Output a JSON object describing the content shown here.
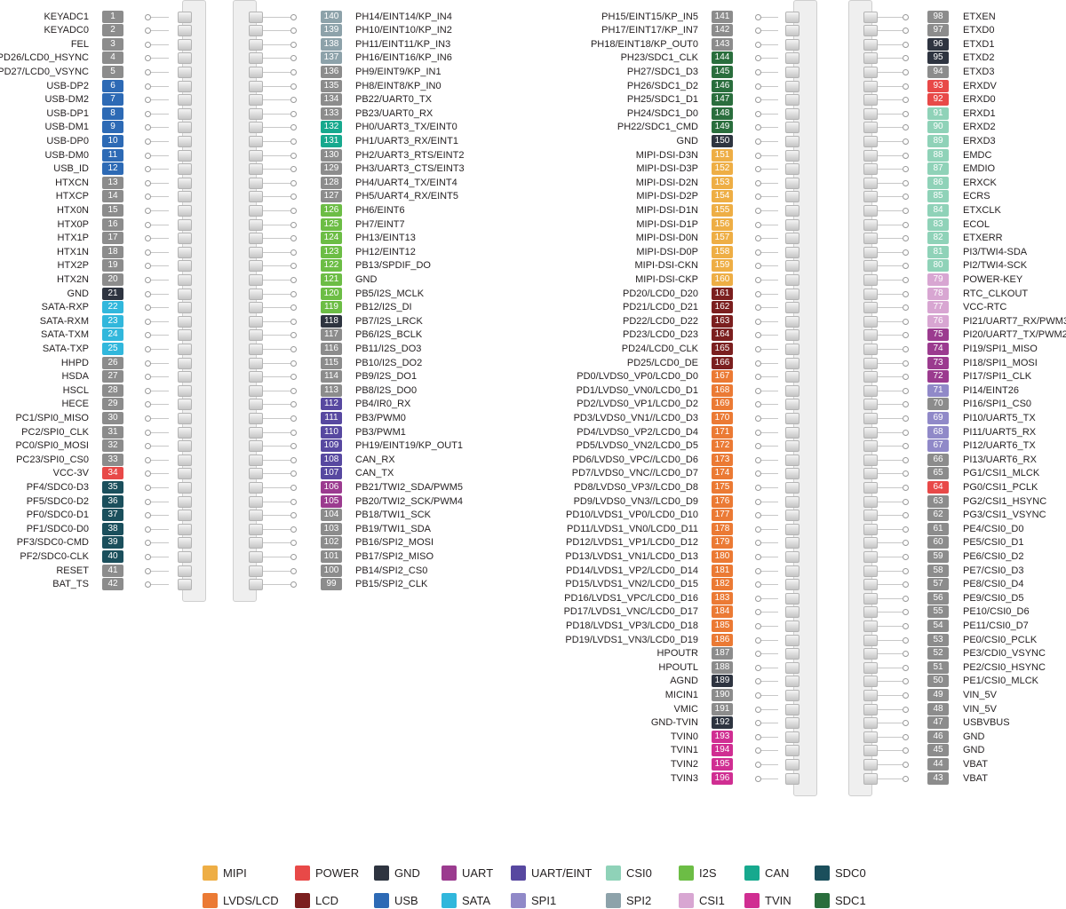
{
  "colors": {
    "MIPI": "#eeae45",
    "POWER": "#e84948",
    "GND": "#2e3440",
    "UART": "#9b3b8f",
    "UART/EINT": "#5748a0",
    "CSI0": "#8fd2b8",
    "I2S": "#6cbd45",
    "CAN": "#17a98e",
    "SDC0": "#1b4f5c",
    "LVDS/LCD": "#eb7a34",
    "LCD": "#7b1f1f",
    "USB": "#2d6ab5",
    "SATA": "#31b7dc",
    "SPI1": "#9089c8",
    "SPI2": "#8da2aa",
    "CSI1": "#d8a6d2",
    "TVIN": "#d02e92",
    "SDC1": "#2a6e3d",
    "none": "#8c8c8c"
  },
  "legend": [
    {
      "label": "MIPI",
      "group": "MIPI"
    },
    {
      "label": "POWER",
      "group": "POWER"
    },
    {
      "label": "GND",
      "group": "GND"
    },
    {
      "label": "UART",
      "group": "UART"
    },
    {
      "label": "UART/EINT",
      "group": "UART/EINT"
    },
    {
      "label": "CSI0",
      "group": "CSI0"
    },
    {
      "label": "I2S",
      "group": "I2S"
    },
    {
      "label": "CAN",
      "group": "CAN"
    },
    {
      "label": "SDC0",
      "group": "SDC0"
    },
    {
      "label": "LVDS/LCD",
      "group": "LVDS/LCD"
    },
    {
      "label": "LCD",
      "group": "LCD"
    },
    {
      "label": "USB",
      "group": "USB"
    },
    {
      "label": "SATA",
      "group": "SATA"
    },
    {
      "label": "SPI1",
      "group": "SPI1"
    },
    {
      "label": "SPI2",
      "group": "SPI2"
    },
    {
      "label": "CSI1",
      "group": "CSI1"
    },
    {
      "label": "TVIN",
      "group": "TVIN"
    },
    {
      "label": "SDC1",
      "group": "SDC1"
    }
  ],
  "connector1_left": [
    {
      "pin": "1",
      "name": "KEYADC1",
      "group": "none"
    },
    {
      "pin": "2",
      "name": "KEYADC0",
      "group": "none"
    },
    {
      "pin": "3",
      "name": "FEL",
      "group": "none"
    },
    {
      "pin": "4",
      "name": "PD26/LCD0_HSYNC",
      "group": "none"
    },
    {
      "pin": "5",
      "name": "PD27/LCD0_VSYNC",
      "group": "none"
    },
    {
      "pin": "6",
      "name": "USB-DP2",
      "group": "USB"
    },
    {
      "pin": "7",
      "name": "USB-DM2",
      "group": "USB"
    },
    {
      "pin": "8",
      "name": "USB-DP1",
      "group": "USB"
    },
    {
      "pin": "9",
      "name": "USB-DM1",
      "group": "USB"
    },
    {
      "pin": "10",
      "name": "USB-DP0",
      "group": "USB"
    },
    {
      "pin": "11",
      "name": "USB-DM0",
      "group": "USB"
    },
    {
      "pin": "12",
      "name": "USB_ID",
      "group": "USB"
    },
    {
      "pin": "13",
      "name": "HTXCN",
      "group": "none"
    },
    {
      "pin": "14",
      "name": "HTXCP",
      "group": "none"
    },
    {
      "pin": "15",
      "name": "HTX0N",
      "group": "none"
    },
    {
      "pin": "16",
      "name": "HTX0P",
      "group": "none"
    },
    {
      "pin": "17",
      "name": "HTX1P",
      "group": "none"
    },
    {
      "pin": "18",
      "name": "HTX1N",
      "group": "none"
    },
    {
      "pin": "19",
      "name": "HTX2P",
      "group": "none"
    },
    {
      "pin": "20",
      "name": "HTX2N",
      "group": "none"
    },
    {
      "pin": "21",
      "name": "GND",
      "group": "GND"
    },
    {
      "pin": "22",
      "name": "SATA-RXP",
      "group": "SATA"
    },
    {
      "pin": "23",
      "name": "SATA-RXM",
      "group": "SATA"
    },
    {
      "pin": "24",
      "name": "SATA-TXM",
      "group": "SATA"
    },
    {
      "pin": "25",
      "name": "SATA-TXP",
      "group": "SATA"
    },
    {
      "pin": "26",
      "name": "HHPD",
      "group": "none"
    },
    {
      "pin": "27",
      "name": "HSDA",
      "group": "none"
    },
    {
      "pin": "28",
      "name": "HSCL",
      "group": "none"
    },
    {
      "pin": "29",
      "name": "HECE",
      "group": "none"
    },
    {
      "pin": "30",
      "name": "PC1/SPI0_MISO",
      "group": "none"
    },
    {
      "pin": "31",
      "name": "PC2/SPI0_CLK",
      "group": "none"
    },
    {
      "pin": "32",
      "name": "PC0/SPI0_MOSI",
      "group": "none"
    },
    {
      "pin": "33",
      "name": "PC23/SPI0_CS0",
      "group": "none"
    },
    {
      "pin": "34",
      "name": "VCC-3V",
      "group": "POWER"
    },
    {
      "pin": "35",
      "name": "PF4/SDC0-D3",
      "group": "SDC0"
    },
    {
      "pin": "36",
      "name": "PF5/SDC0-D2",
      "group": "SDC0"
    },
    {
      "pin": "37",
      "name": "PF0/SDC0-D1",
      "group": "SDC0"
    },
    {
      "pin": "38",
      "name": "PF1/SDC0-D0",
      "group": "SDC0"
    },
    {
      "pin": "39",
      "name": "PF3/SDC0-CMD",
      "group": "SDC0"
    },
    {
      "pin": "40",
      "name": "PF2/SDC0-CLK",
      "group": "SDC0"
    },
    {
      "pin": "41",
      "name": "RESET",
      "group": "none"
    },
    {
      "pin": "42",
      "name": "BAT_TS",
      "group": "none"
    }
  ],
  "connector1_right": [
    {
      "pin": "140",
      "name": "PH14/EINT14/KP_IN4",
      "group": "SPI2"
    },
    {
      "pin": "139",
      "name": "PH10/EINT10/KP_IN2",
      "group": "SPI2"
    },
    {
      "pin": "138",
      "name": "PH11/EINT11/KP_IN3",
      "group": "SPI2"
    },
    {
      "pin": "137",
      "name": "PH16/EINT16/KP_IN6",
      "group": "SPI2"
    },
    {
      "pin": "136",
      "name": "PH9/EINT9/KP_IN1",
      "group": "none"
    },
    {
      "pin": "135",
      "name": "PH8/EINT8/KP_IN0",
      "group": "none"
    },
    {
      "pin": "134",
      "name": "PB22/UART0_TX",
      "group": "none"
    },
    {
      "pin": "133",
      "name": "PB23/UART0_RX",
      "group": "none"
    },
    {
      "pin": "132",
      "name": "PH0/UART3_TX/EINT0",
      "group": "CAN"
    },
    {
      "pin": "131",
      "name": "PH1/UART3_RX/EINT1",
      "group": "CAN"
    },
    {
      "pin": "130",
      "name": "PH2/UART3_RTS/EINT2",
      "group": "none"
    },
    {
      "pin": "129",
      "name": "PH3/UART3_CTS/EINT3",
      "group": "none"
    },
    {
      "pin": "128",
      "name": "PH4/UART4_TX/EINT4",
      "group": "none"
    },
    {
      "pin": "127",
      "name": "PH5/UART4_RX/EINT5",
      "group": "none"
    },
    {
      "pin": "126",
      "name": "PH6/EINT6",
      "group": "I2S"
    },
    {
      "pin": "125",
      "name": "PH7/EINT7",
      "group": "I2S"
    },
    {
      "pin": "124",
      "name": "PH13/EINT13",
      "group": "I2S"
    },
    {
      "pin": "123",
      "name": "PH12/EINT12",
      "group": "I2S"
    },
    {
      "pin": "122",
      "name": "PB13/SPDIF_DO",
      "group": "I2S"
    },
    {
      "pin": "121",
      "name": "GND",
      "group": "I2S"
    },
    {
      "pin": "120",
      "name": "PB5/I2S_MCLK",
      "group": "I2S"
    },
    {
      "pin": "119",
      "name": "PB12/I2S_DI",
      "group": "I2S"
    },
    {
      "pin": "118",
      "name": "PB7/I2S_LRCK",
      "group": "GND"
    },
    {
      "pin": "117",
      "name": "PB6/I2S_BCLK",
      "group": "none"
    },
    {
      "pin": "116",
      "name": "PB11/I2S_DO3",
      "group": "none"
    },
    {
      "pin": "115",
      "name": "PB10/I2S_DO2",
      "group": "none"
    },
    {
      "pin": "114",
      "name": "PB9/I2S_DO1",
      "group": "none"
    },
    {
      "pin": "113",
      "name": "PB8/I2S_DO0",
      "group": "none"
    },
    {
      "pin": "112",
      "name": "PB4/IR0_RX",
      "group": "UART/EINT"
    },
    {
      "pin": "111",
      "name": "PB3/PWM0",
      "group": "UART/EINT"
    },
    {
      "pin": "110",
      "name": "PB3/PWM1",
      "group": "UART/EINT"
    },
    {
      "pin": "109",
      "name": "PH19/EINT19/KP_OUT1",
      "group": "UART/EINT"
    },
    {
      "pin": "108",
      "name": "CAN_RX",
      "group": "UART/EINT"
    },
    {
      "pin": "107",
      "name": "CAN_TX",
      "group": "UART/EINT"
    },
    {
      "pin": "106",
      "name": "PB21/TWI2_SDA/PWM5",
      "group": "UART"
    },
    {
      "pin": "105",
      "name": "PB20/TWI2_SCK/PWM4",
      "group": "UART"
    },
    {
      "pin": "104",
      "name": "PB18/TWI1_SCK",
      "group": "none"
    },
    {
      "pin": "103",
      "name": "PB19/TWI1_SDA",
      "group": "none"
    },
    {
      "pin": "102",
      "name": "PB16/SPI2_MOSI",
      "group": "none"
    },
    {
      "pin": "101",
      "name": "PB17/SPI2_MISO",
      "group": "none"
    },
    {
      "pin": "100",
      "name": "PB14/SPI2_CS0",
      "group": "none"
    },
    {
      "pin": "99",
      "name": "PB15/SPI2_CLK",
      "group": "none"
    }
  ],
  "connector2_left": [
    {
      "pin": "141",
      "name": "PH15/EINT15/KP_IN5",
      "group": "none"
    },
    {
      "pin": "142",
      "name": "PH17/EINT17/KP_IN7",
      "group": "none"
    },
    {
      "pin": "143",
      "name": "PH18/EINT18/KP_OUT0",
      "group": "none"
    },
    {
      "pin": "144",
      "name": "PH23/SDC1_CLK",
      "group": "SDC1"
    },
    {
      "pin": "145",
      "name": "PH27/SDC1_D3",
      "group": "SDC1"
    },
    {
      "pin": "146",
      "name": "PH26/SDC1_D2",
      "group": "SDC1"
    },
    {
      "pin": "147",
      "name": "PH25/SDC1_D1",
      "group": "SDC1"
    },
    {
      "pin": "148",
      "name": "PH24/SDC1_D0",
      "group": "SDC1"
    },
    {
      "pin": "149",
      "name": "PH22/SDC1_CMD",
      "group": "SDC1"
    },
    {
      "pin": "150",
      "name": "GND",
      "group": "GND"
    },
    {
      "pin": "151",
      "name": "MIPI-DSI-D3N",
      "group": "MIPI"
    },
    {
      "pin": "152",
      "name": "MIPI-DSI-D3P",
      "group": "MIPI"
    },
    {
      "pin": "153",
      "name": "MIPI-DSI-D2N",
      "group": "MIPI"
    },
    {
      "pin": "154",
      "name": "MIPI-DSI-D2P",
      "group": "MIPI"
    },
    {
      "pin": "155",
      "name": "MIPI-DSI-D1N",
      "group": "MIPI"
    },
    {
      "pin": "156",
      "name": "MIPI-DSI-D1P",
      "group": "MIPI"
    },
    {
      "pin": "157",
      "name": "MIPI-DSI-D0N",
      "group": "MIPI"
    },
    {
      "pin": "158",
      "name": "MIPI-DSI-D0P",
      "group": "MIPI"
    },
    {
      "pin": "159",
      "name": "MIPI-DSI-CKN",
      "group": "MIPI"
    },
    {
      "pin": "160",
      "name": "MIPI-DSI-CKP",
      "group": "MIPI"
    },
    {
      "pin": "161",
      "name": "PD20/LCD0_D20",
      "group": "LCD"
    },
    {
      "pin": "162",
      "name": "PD21/LCD0_D21",
      "group": "LCD"
    },
    {
      "pin": "163",
      "name": "PD22/LCD0_D22",
      "group": "LCD"
    },
    {
      "pin": "164",
      "name": "PD23/LCD0_D23",
      "group": "LCD"
    },
    {
      "pin": "165",
      "name": "PD24/LCD0_CLK",
      "group": "LCD"
    },
    {
      "pin": "166",
      "name": "PD25/LCD0_DE",
      "group": "LCD"
    },
    {
      "pin": "167",
      "name": "PD0/LVDS0_VP0/LCD0_D0",
      "group": "LVDS/LCD"
    },
    {
      "pin": "168",
      "name": "PD1/LVDS0_VN0/LCD0_D1",
      "group": "LVDS/LCD"
    },
    {
      "pin": "169",
      "name": "PD2/LVDS0_VP1/LCD0_D2",
      "group": "LVDS/LCD"
    },
    {
      "pin": "170",
      "name": "PD3/LVDS0_VN1//LCD0_D3",
      "group": "LVDS/LCD"
    },
    {
      "pin": "171",
      "name": "PD4/LVDS0_VP2/LCD0_D4",
      "group": "LVDS/LCD"
    },
    {
      "pin": "172",
      "name": "PD5/LVDS0_VN2/LCD0_D5",
      "group": "LVDS/LCD"
    },
    {
      "pin": "173",
      "name": "PD6/LVDS0_VPC//LCD0_D6",
      "group": "LVDS/LCD"
    },
    {
      "pin": "174",
      "name": "PD7/LVDS0_VNC//LCD0_D7",
      "group": "LVDS/LCD"
    },
    {
      "pin": "175",
      "name": "PD8/LVDS0_VP3//LCD0_D8",
      "group": "LVDS/LCD"
    },
    {
      "pin": "176",
      "name": "PD9/LVDS0_VN3//LCD0_D9",
      "group": "LVDS/LCD"
    },
    {
      "pin": "177",
      "name": "PD10/LVDS1_VP0/LCD0_D10",
      "group": "LVDS/LCD"
    },
    {
      "pin": "178",
      "name": "PD11/LVDS1_VN0/LCD0_D11",
      "group": "LVDS/LCD"
    },
    {
      "pin": "179",
      "name": "PD12/LVDS1_VP1/LCD0_D12",
      "group": "LVDS/LCD"
    },
    {
      "pin": "180",
      "name": "PD13/LVDS1_VN1/LCD0_D13",
      "group": "LVDS/LCD"
    },
    {
      "pin": "181",
      "name": "PD14/LVDS1_VP2/LCD0_D14",
      "group": "LVDS/LCD"
    },
    {
      "pin": "182",
      "name": "PD15/LVDS1_VN2/LCD0_D15",
      "group": "LVDS/LCD"
    },
    {
      "pin": "183",
      "name": "PD16/LVDS1_VPC/LCD0_D16",
      "group": "LVDS/LCD"
    },
    {
      "pin": "184",
      "name": "PD17/LVDS1_VNC/LCD0_D17",
      "group": "LVDS/LCD"
    },
    {
      "pin": "185",
      "name": "PD18/LVDS1_VP3/LCD0_D18",
      "group": "LVDS/LCD"
    },
    {
      "pin": "186",
      "name": "PD19/LVDS1_VN3/LCD0_D19",
      "group": "LVDS/LCD"
    },
    {
      "pin": "187",
      "name": "HPOUTR",
      "group": "none"
    },
    {
      "pin": "188",
      "name": "HPOUTL",
      "group": "none"
    },
    {
      "pin": "189",
      "name": "AGND",
      "group": "GND"
    },
    {
      "pin": "190",
      "name": "MICIN1",
      "group": "none"
    },
    {
      "pin": "191",
      "name": "VMIC",
      "group": "none"
    },
    {
      "pin": "192",
      "name": "GND-TVIN",
      "group": "GND"
    },
    {
      "pin": "193",
      "name": "TVIN0",
      "group": "TVIN"
    },
    {
      "pin": "194",
      "name": "TVIN1",
      "group": "TVIN"
    },
    {
      "pin": "195",
      "name": "TVIN2",
      "group": "TVIN"
    },
    {
      "pin": "196",
      "name": "TVIN3",
      "group": "TVIN"
    }
  ],
  "connector2_right": [
    {
      "pin": "98",
      "name": "ETXEN",
      "group": "none"
    },
    {
      "pin": "97",
      "name": "ETXD0",
      "group": "none"
    },
    {
      "pin": "96",
      "name": "ETXD1",
      "group": "GND"
    },
    {
      "pin": "95",
      "name": "ETXD2",
      "group": "GND"
    },
    {
      "pin": "94",
      "name": "ETXD3",
      "group": "none"
    },
    {
      "pin": "93",
      "name": "ERXDV",
      "group": "POWER"
    },
    {
      "pin": "92",
      "name": "ERXD0",
      "group": "POWER"
    },
    {
      "pin": "91",
      "name": "ERXD1",
      "group": "CSI0"
    },
    {
      "pin": "90",
      "name": "ERXD2",
      "group": "CSI0"
    },
    {
      "pin": "89",
      "name": "ERXD3",
      "group": "CSI0"
    },
    {
      "pin": "88",
      "name": "EMDC",
      "group": "CSI0"
    },
    {
      "pin": "87",
      "name": "EMDIO",
      "group": "CSI0"
    },
    {
      "pin": "86",
      "name": "ERXCK",
      "group": "CSI0"
    },
    {
      "pin": "85",
      "name": "ECRS",
      "group": "CSI0"
    },
    {
      "pin": "84",
      "name": "ETXCLK",
      "group": "CSI0"
    },
    {
      "pin": "83",
      "name": "ECOL",
      "group": "CSI0"
    },
    {
      "pin": "82",
      "name": "ETXERR",
      "group": "CSI0"
    },
    {
      "pin": "81",
      "name": "PI3/TWI4-SDA",
      "group": "CSI0"
    },
    {
      "pin": "80",
      "name": "PI2/TWI4-SCK",
      "group": "CSI0"
    },
    {
      "pin": "79",
      "name": "POWER-KEY",
      "group": "CSI1"
    },
    {
      "pin": "78",
      "name": "RTC_CLKOUT",
      "group": "CSI1"
    },
    {
      "pin": "77",
      "name": "VCC-RTC",
      "group": "CSI1"
    },
    {
      "pin": "76",
      "name": "PI21/UART7_RX/PWM3",
      "group": "CSI1"
    },
    {
      "pin": "75",
      "name": "PI20/UART7_TX/PWM2",
      "group": "UART"
    },
    {
      "pin": "74",
      "name": "PI19/SPI1_MISO",
      "group": "UART"
    },
    {
      "pin": "73",
      "name": "PI18/SPI1_MOSI",
      "group": "UART"
    },
    {
      "pin": "72",
      "name": "PI17/SPI1_CLK",
      "group": "UART"
    },
    {
      "pin": "71",
      "name": "PI14/EINT26",
      "group": "SPI1"
    },
    {
      "pin": "70",
      "name": "PI16/SPI1_CS0",
      "group": "none"
    },
    {
      "pin": "69",
      "name": "PI10/UART5_TX",
      "group": "SPI1"
    },
    {
      "pin": "68",
      "name": "PI11/UART5_RX",
      "group": "SPI1"
    },
    {
      "pin": "67",
      "name": "PI12/UART6_TX",
      "group": "SPI1"
    },
    {
      "pin": "66",
      "name": "PI13/UART6_RX",
      "group": "none"
    },
    {
      "pin": "65",
      "name": "PG1/CSI1_MLCK",
      "group": "none"
    },
    {
      "pin": "64",
      "name": "PG0/CSI1_PCLK",
      "group": "POWER"
    },
    {
      "pin": "63",
      "name": "PG2/CSI1_HSYNC",
      "group": "none"
    },
    {
      "pin": "62",
      "name": "PG3/CSI1_VSYNC",
      "group": "none"
    },
    {
      "pin": "61",
      "name": "PE4/CSI0_D0",
      "group": "none"
    },
    {
      "pin": "60",
      "name": "PE5/CSI0_D1",
      "group": "none"
    },
    {
      "pin": "59",
      "name": "PE6/CSI0_D2",
      "group": "none"
    },
    {
      "pin": "58",
      "name": "PE7/CSI0_D3",
      "group": "none"
    },
    {
      "pin": "57",
      "name": "PE8/CSI0_D4",
      "group": "none"
    },
    {
      "pin": "56",
      "name": "PE9/CSI0_D5",
      "group": "none"
    },
    {
      "pin": "55",
      "name": "PE10/CSI0_D6",
      "group": "none"
    },
    {
      "pin": "54",
      "name": "PE11/CSI0_D7",
      "group": "none"
    },
    {
      "pin": "53",
      "name": "PE0/CSI0_PCLK",
      "group": "none"
    },
    {
      "pin": "52",
      "name": "PE3/CDI0_VSYNC",
      "group": "none"
    },
    {
      "pin": "51",
      "name": "PE2/CSI0_HSYNC",
      "group": "none"
    },
    {
      "pin": "50",
      "name": "PE1/CSI0_MLCK",
      "group": "none"
    },
    {
      "pin": "49",
      "name": "VIN_5V",
      "group": "none"
    },
    {
      "pin": "48",
      "name": "VIN_5V",
      "group": "none"
    },
    {
      "pin": "47",
      "name": "USBVBUS",
      "group": "none"
    },
    {
      "pin": "46",
      "name": "GND",
      "group": "none"
    },
    {
      "pin": "45",
      "name": "GND",
      "group": "none"
    },
    {
      "pin": "44",
      "name": "VBAT",
      "group": "none"
    },
    {
      "pin": "43",
      "name": "VBAT",
      "group": "none"
    }
  ]
}
